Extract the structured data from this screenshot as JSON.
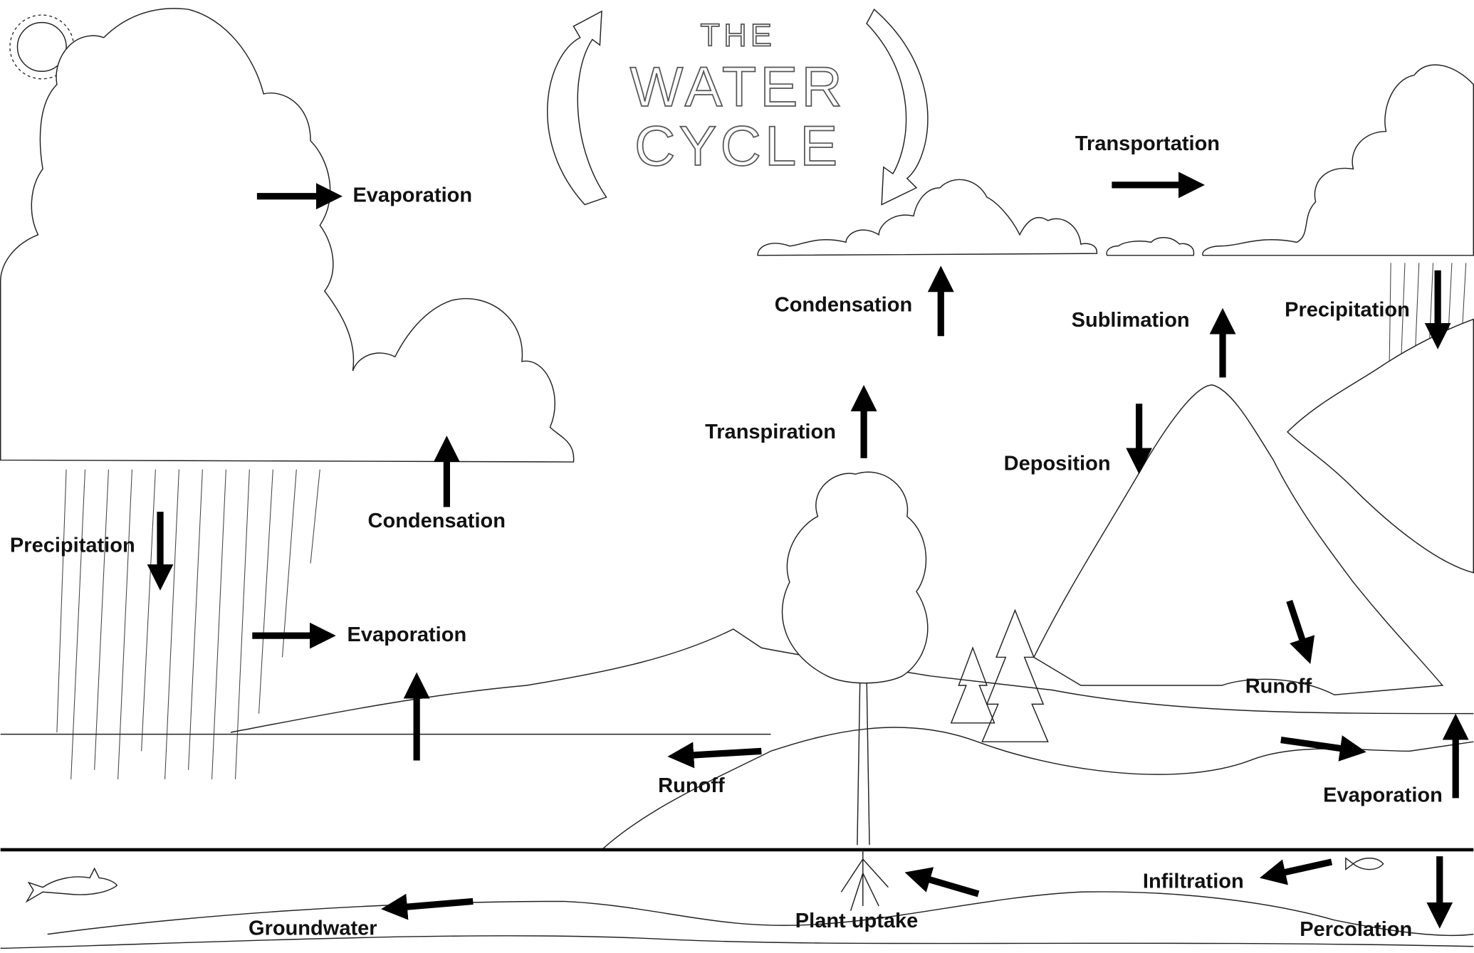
{
  "title": {
    "line1": "THE",
    "line2": "WATER",
    "line3": "CYCLE"
  },
  "labels": [
    "Evaporation",
    "Condensation",
    "Precipitation",
    "Evaporation",
    "Runoff",
    "Transpiration",
    "Condensation",
    "Transportation",
    "Sublimation",
    "Deposition",
    "Precipitation",
    "Runoff",
    "Evaporation",
    "Infiltration",
    "Percolation",
    "Plant uptake",
    "Groundwater"
  ]
}
